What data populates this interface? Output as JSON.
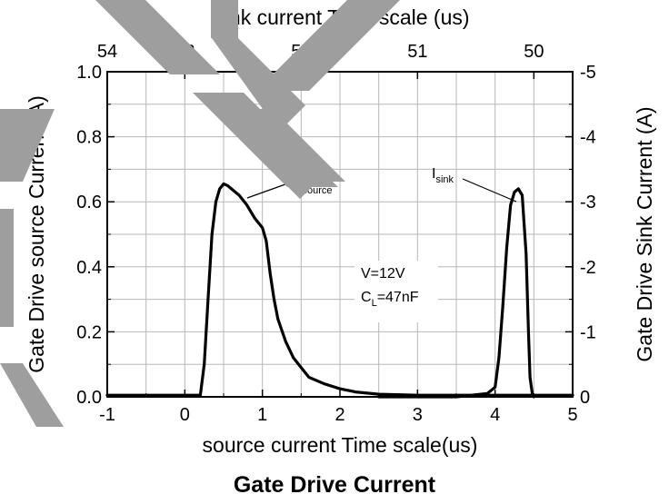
{
  "chart_data": {
    "type": "line",
    "title": "Gate Drive Current",
    "top_axis": {
      "label": "Sink current Time scale (us)",
      "ticks": [
        {
          "x": -1,
          "label": "54"
        },
        {
          "x": 0,
          "label": "53"
        },
        {
          "x": 1.5,
          "label": "52"
        },
        {
          "x": 3,
          "label": "51"
        },
        {
          "x": 4.5,
          "label": "50"
        }
      ]
    },
    "xlabel": "source current Time scale(us)",
    "xlim": [
      -1,
      5
    ],
    "xticks": [
      -1,
      0,
      1,
      2,
      3,
      4,
      5
    ],
    "ylabel_left": "Gate Drive source Current (A)",
    "ylim_left": [
      0,
      1.0
    ],
    "yticks_left": [
      "0.0",
      "0.2",
      "0.4",
      "0.6",
      "0.8",
      "1.0"
    ],
    "ylabel_right": "Gate Drive Sink Current (A)",
    "ylim_right": [
      0,
      -5
    ],
    "yticks_right": [
      "0",
      "-1",
      "-2",
      "-3",
      "-4",
      "-5"
    ],
    "grid": true,
    "series": [
      {
        "name": "I_source",
        "axis": "left",
        "x": [
          -1.0,
          -0.5,
          0.0,
          0.2,
          0.25,
          0.3,
          0.35,
          0.4,
          0.45,
          0.5,
          0.55,
          0.6,
          0.7,
          0.8,
          0.9,
          1.0,
          1.05,
          1.1,
          1.15,
          1.2,
          1.3,
          1.4,
          1.5,
          1.6,
          1.8,
          2.0,
          2.2,
          2.5,
          3.0,
          3.5,
          4.0,
          4.3,
          4.5,
          5.0
        ],
        "y": [
          0.005,
          0.005,
          0.005,
          0.005,
          0.1,
          0.3,
          0.5,
          0.6,
          0.64,
          0.655,
          0.65,
          0.64,
          0.62,
          0.59,
          0.55,
          0.52,
          0.48,
          0.38,
          0.3,
          0.24,
          0.17,
          0.12,
          0.09,
          0.06,
          0.04,
          0.025,
          0.015,
          0.008,
          0.005,
          0.005,
          0.005,
          0.005,
          0.005,
          0.005
        ]
      },
      {
        "name": "I_sink",
        "axis": "right",
        "x": [
          2.5,
          3.0,
          3.5,
          3.9,
          4.0,
          4.05,
          4.1,
          4.15,
          4.2,
          4.25,
          4.3,
          4.35,
          4.4,
          4.43,
          4.45,
          4.48,
          4.5
        ],
        "y": [
          0.0,
          0.0,
          0.0,
          -0.05,
          -0.15,
          -0.6,
          -1.4,
          -2.3,
          -2.95,
          -3.15,
          -3.2,
          -3.1,
          -2.2,
          -1.0,
          -0.3,
          -0.05,
          0.0
        ]
      }
    ],
    "annotations": [
      {
        "main": "I",
        "sub": "source"
      },
      {
        "main": "I",
        "sub": "sink"
      },
      {
        "line1": "V=12V",
        "line2_main": "C",
        "line2_sub": "L",
        "line2_rest": "=47nF"
      }
    ]
  }
}
